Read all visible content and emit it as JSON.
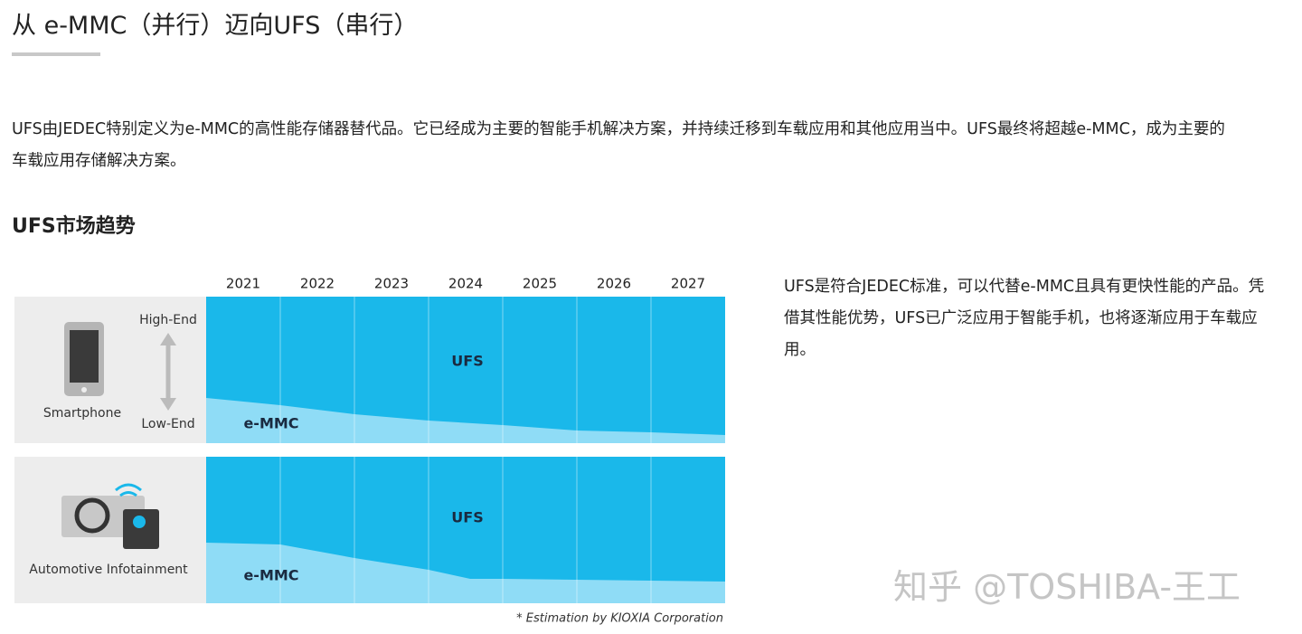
{
  "title": "从 e-MMC（并行）迈向UFS（串行）",
  "intro": "UFS由JEDEC特别定义为e-MMC的高性能存储器替代品。它已经成为主要的智能手机解决方案，并持续迁移到车载应用和其他应用当中。UFS最终将超越e-MMC，成为主要的车载应用存储解决方案。",
  "section_heading": "UFS市场趋势",
  "diagram": {
    "years": [
      "2021",
      "2022",
      "2023",
      "2024",
      "2025",
      "2026",
      "2027"
    ],
    "panels": [
      {
        "name": "Smartphone",
        "high": "High-End",
        "low": "Low-End",
        "upper": "UFS",
        "lower": "e-MMC"
      },
      {
        "name": "Automotive Infotainment",
        "upper": "UFS",
        "lower": "e-MMC"
      }
    ],
    "footnote": "* Estimation by KIOXIA Corporation"
  },
  "side_text": "UFS是符合JEDEC标准，可以代替e-MMC且具有更快性能的产品。凭借其性能优势，UFS已广泛应用于智能手机，也将逐渐应用于车载应用。",
  "watermark": "知乎 @TOSHIBA-王工"
}
